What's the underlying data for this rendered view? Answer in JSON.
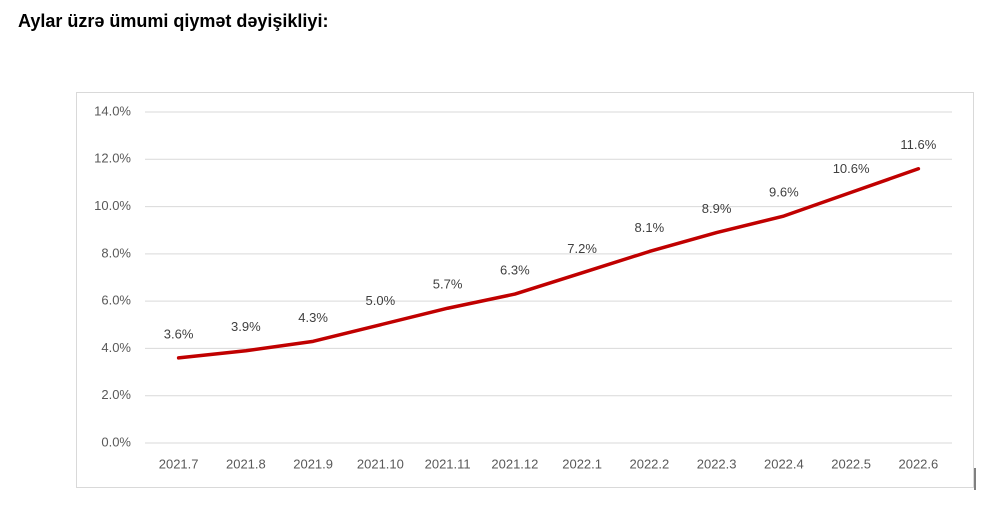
{
  "chart_data": {
    "type": "line",
    "title": "Aylar üzrə ümumi qiymət dəyişikliyi:",
    "categories": [
      "2021.7",
      "2021.8",
      "2021.9",
      "2021.10",
      "2021.11",
      "2021.12",
      "2022.1",
      "2022.2",
      "2022.3",
      "2022.4",
      "2022.5",
      "2022.6"
    ],
    "values": [
      3.6,
      3.9,
      4.3,
      5.0,
      5.7,
      6.3,
      7.2,
      8.1,
      8.9,
      9.6,
      10.6,
      11.6
    ],
    "value_labels": [
      "3.6%",
      "3.9%",
      "4.3%",
      "5.0%",
      "5.7%",
      "6.3%",
      "7.2%",
      "8.1%",
      "8.9%",
      "9.6%",
      "10.6%",
      "11.6%"
    ],
    "color": "#c00000",
    "ylim": [
      0,
      14
    ],
    "yticks": [
      {
        "value": 0,
        "label": "0.0%"
      },
      {
        "value": 2,
        "label": "2.0%"
      },
      {
        "value": 4,
        "label": "4.0%"
      },
      {
        "value": 6,
        "label": "6.0%"
      },
      {
        "value": 8,
        "label": "8.0%"
      },
      {
        "value": 10,
        "label": "10.0%"
      },
      {
        "value": 12,
        "label": "12.0%"
      },
      {
        "value": 14,
        "label": "14.0%"
      }
    ],
    "grid": true
  }
}
